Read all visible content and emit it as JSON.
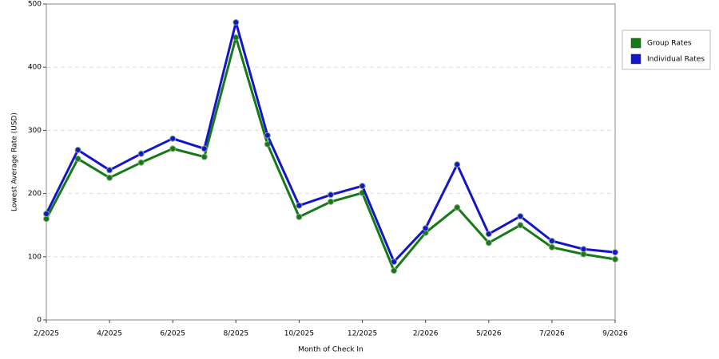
{
  "chart_data": {
    "type": "line",
    "x_label": "Month of Check In",
    "y_label": "Lowest Average Rate (USD)",
    "categories": [
      "2/2025",
      null,
      "4/2025",
      null,
      "6/2025",
      null,
      "8/2025",
      null,
      "10/2025",
      null,
      "12/2025",
      null,
      "2/2026",
      null,
      "5/2026",
      null,
      "7/2026",
      null,
      "9/2026"
    ],
    "series": [
      {
        "name": "Group Rates",
        "color": "#157a15",
        "values": [
          160,
          255,
          225,
          249,
          271,
          258,
          447,
          278,
          163,
          187,
          201,
          78,
          138,
          178,
          122,
          150,
          115,
          104,
          96
        ]
      },
      {
        "name": "Individual Rates",
        "color": "#1515c8",
        "values": [
          168,
          269,
          237,
          263,
          287,
          271,
          471,
          292,
          181,
          198,
          212,
          92,
          145,
          246,
          136,
          164,
          125,
          112,
          107
        ]
      }
    ],
    "ylim": [
      0,
      500
    ],
    "yticks": [
      0,
      100,
      200,
      300,
      400,
      500
    ],
    "grid": true,
    "legend": "right"
  }
}
